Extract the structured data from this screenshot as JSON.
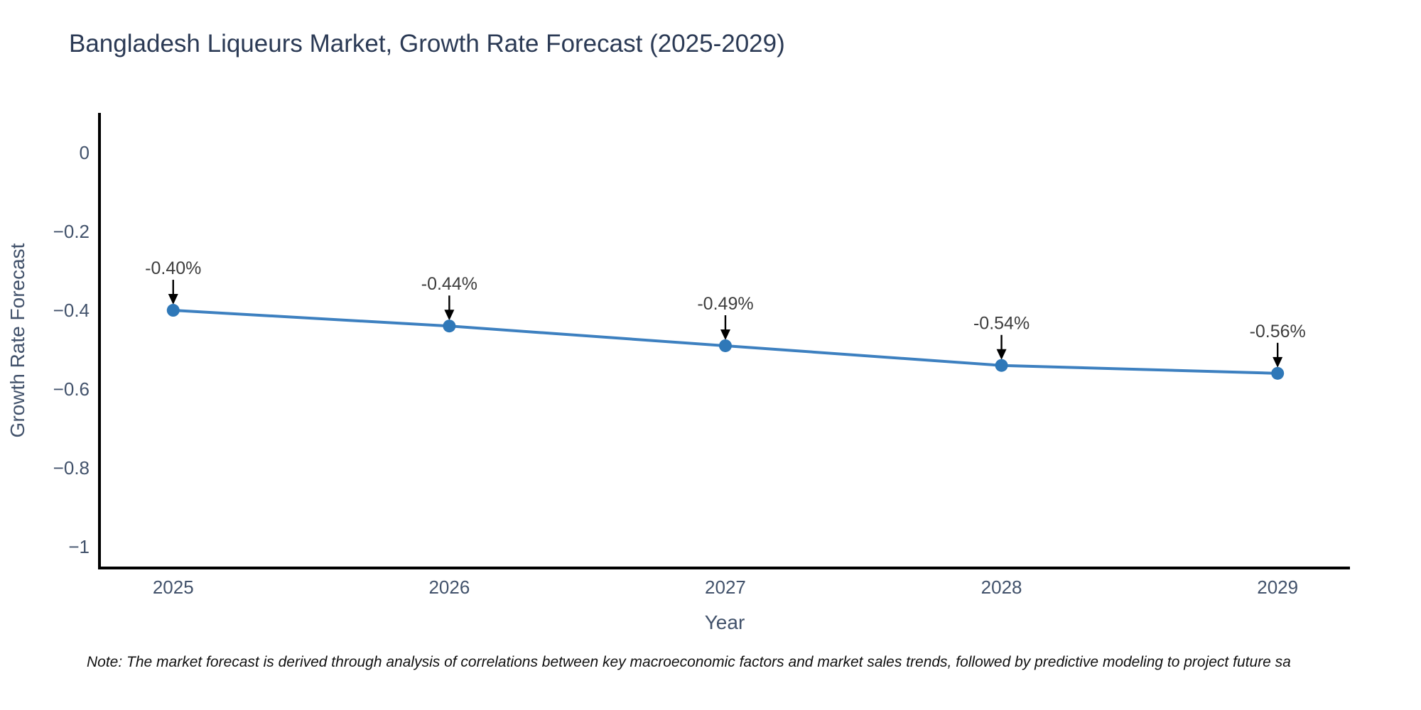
{
  "chart_data": {
    "type": "line",
    "title": "Bangladesh Liqueurs Market, Growth Rate Forecast (2025-2029)",
    "xlabel": "Year",
    "ylabel": "Growth Rate Forecast",
    "x": [
      2025,
      2026,
      2027,
      2028,
      2029
    ],
    "y": [
      -0.4,
      -0.44,
      -0.49,
      -0.54,
      -0.56
    ],
    "point_labels": [
      "-0.40%",
      "-0.44%",
      "-0.49%",
      "-0.54%",
      "-0.56%"
    ],
    "xtick_labels": [
      "2025",
      "2026",
      "2027",
      "2028",
      "2029"
    ],
    "ytick_values": [
      0,
      -0.2,
      -0.4,
      -0.6,
      -0.8,
      -1
    ],
    "ytick_labels": [
      "0",
      "−0.2",
      "−0.4",
      "−0.6",
      "−0.8",
      "−1"
    ],
    "xlim": [
      2024.733,
      2029.262
    ],
    "ylim": [
      -1.054,
      0.101
    ],
    "grid": false,
    "legend": "none",
    "colors": {
      "line": "#3d80c0",
      "marker": "#2f78b8",
      "axis": "#000000",
      "tick_text": "#42526b",
      "axis_label_text": "#42526b",
      "title_text": "#2b3a55",
      "annotation_text": "#3d3d3d",
      "annotation_arrow": "#000000"
    }
  },
  "note": {
    "text": "Note: The market forecast is derived through analysis of correlations between key macroeconomic factors and market sales trends, followed by predictive modeling to project future sa"
  }
}
